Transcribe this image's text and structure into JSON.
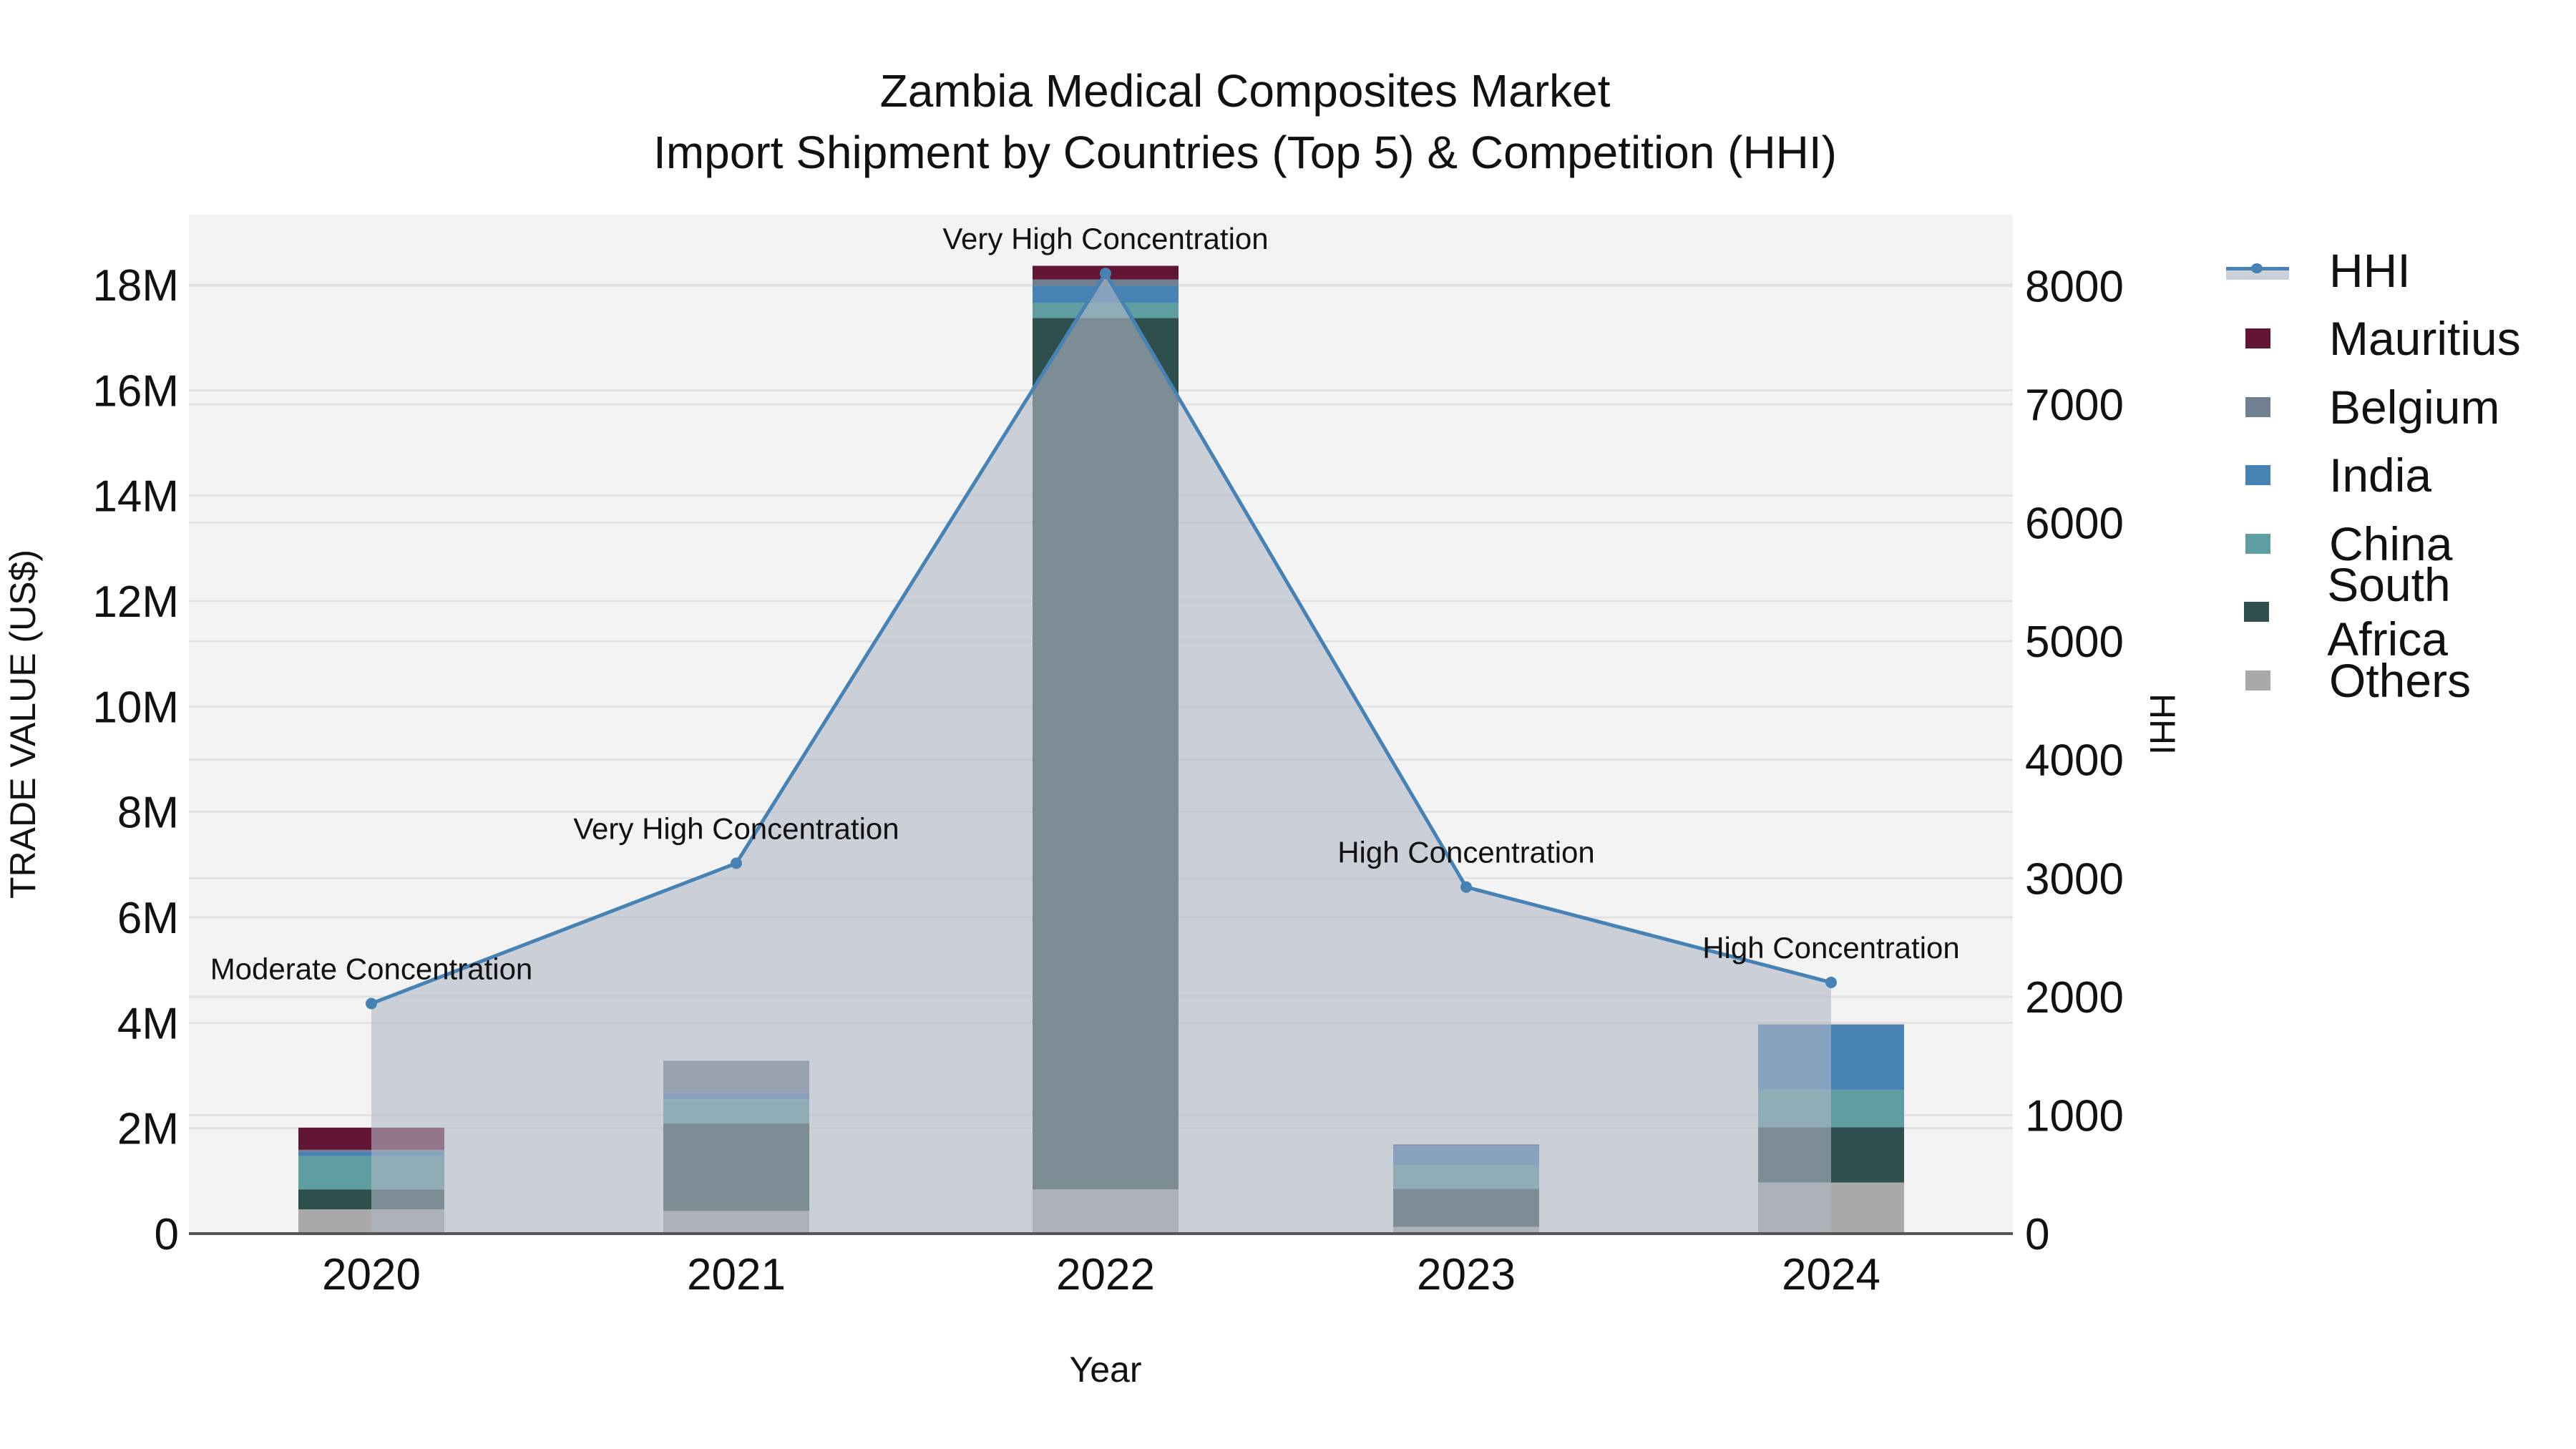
{
  "title": {
    "line1": "Zambia Medical Composites Market",
    "line2": "Import Shipment by Countries (Top 5) & Competition (HHI)"
  },
  "axes": {
    "x_title": "Year",
    "y_left_title": "TRADE VALUE (US$)",
    "y_right_title": "HHI",
    "y_left_ticks": [
      "0",
      "2M",
      "4M",
      "6M",
      "8M",
      "10M",
      "12M",
      "14M",
      "16M",
      "18M"
    ],
    "y_right_ticks": [
      "0",
      "1000",
      "2000",
      "3000",
      "4000",
      "5000",
      "6000",
      "7000",
      "8000"
    ]
  },
  "legend": {
    "items": [
      {
        "label": "HHI",
        "type": "line",
        "color": "#4682B4"
      },
      {
        "label": "Mauritius",
        "type": "bar",
        "color": "#631535"
      },
      {
        "label": "Belgium",
        "type": "bar",
        "color": "#708090"
      },
      {
        "label": "India",
        "type": "bar",
        "color": "#4682B4"
      },
      {
        "label": "China",
        "type": "bar",
        "color": "#5F9EA0"
      },
      {
        "label": "South Africa",
        "type": "bar",
        "color": "#2F4F4F"
      },
      {
        "label": "Others",
        "type": "bar",
        "color": "#A9A9A9"
      }
    ]
  },
  "colors": {
    "plot_bg": "#F3F3F3",
    "grid": "#E2E2E2",
    "hhi_line": "#4682B4",
    "hhi_fill": "rgba(176,184,198,0.6)",
    "axis_line": "#555555"
  },
  "chart_data": {
    "type": "bar",
    "stacked": true,
    "title": "Zambia Medical Composites Market — Import Shipment by Countries (Top 5) & Competition (HHI)",
    "xlabel": "Year",
    "ylabel": "TRADE VALUE (US$)",
    "y2label": "HHI",
    "categories": [
      "2020",
      "2021",
      "2022",
      "2023",
      "2024"
    ],
    "ylim": [
      0,
      19330000
    ],
    "y2lim": [
      0,
      8600
    ],
    "grid": true,
    "legend_position": "right",
    "series": [
      {
        "name": "Others",
        "color": "#A9A9A9",
        "values": [
          460000,
          430000,
          840000,
          130000,
          970000
        ]
      },
      {
        "name": "South Africa",
        "color": "#2F4F4F",
        "values": [
          380000,
          1660000,
          16530000,
          720000,
          1050000
        ]
      },
      {
        "name": "China",
        "color": "#5F9EA0",
        "values": [
          630000,
          460000,
          290000,
          460000,
          710000
        ]
      },
      {
        "name": "India",
        "color": "#4682B4",
        "values": [
          80000,
          120000,
          320000,
          370000,
          1230000
        ]
      },
      {
        "name": "Belgium",
        "color": "#708090",
        "values": [
          40000,
          610000,
          120000,
          0,
          10000
        ]
      },
      {
        "name": "Mauritius",
        "color": "#631535",
        "values": [
          420000,
          0,
          260000,
          10000,
          0
        ]
      }
    ],
    "totals": [
      2010000,
      3280000,
      18360000,
      1690000,
      3970000
    ],
    "hhi": {
      "name": "HHI",
      "axis": "right",
      "type": "line+area",
      "color": "#4682B4",
      "values": [
        1942,
        3126,
        8104,
        2925,
        2120
      ],
      "annotations": [
        "Moderate Concentration",
        "Very High Concentration",
        "Very High Concentration",
        "High Concentration",
        "High Concentration"
      ]
    }
  }
}
